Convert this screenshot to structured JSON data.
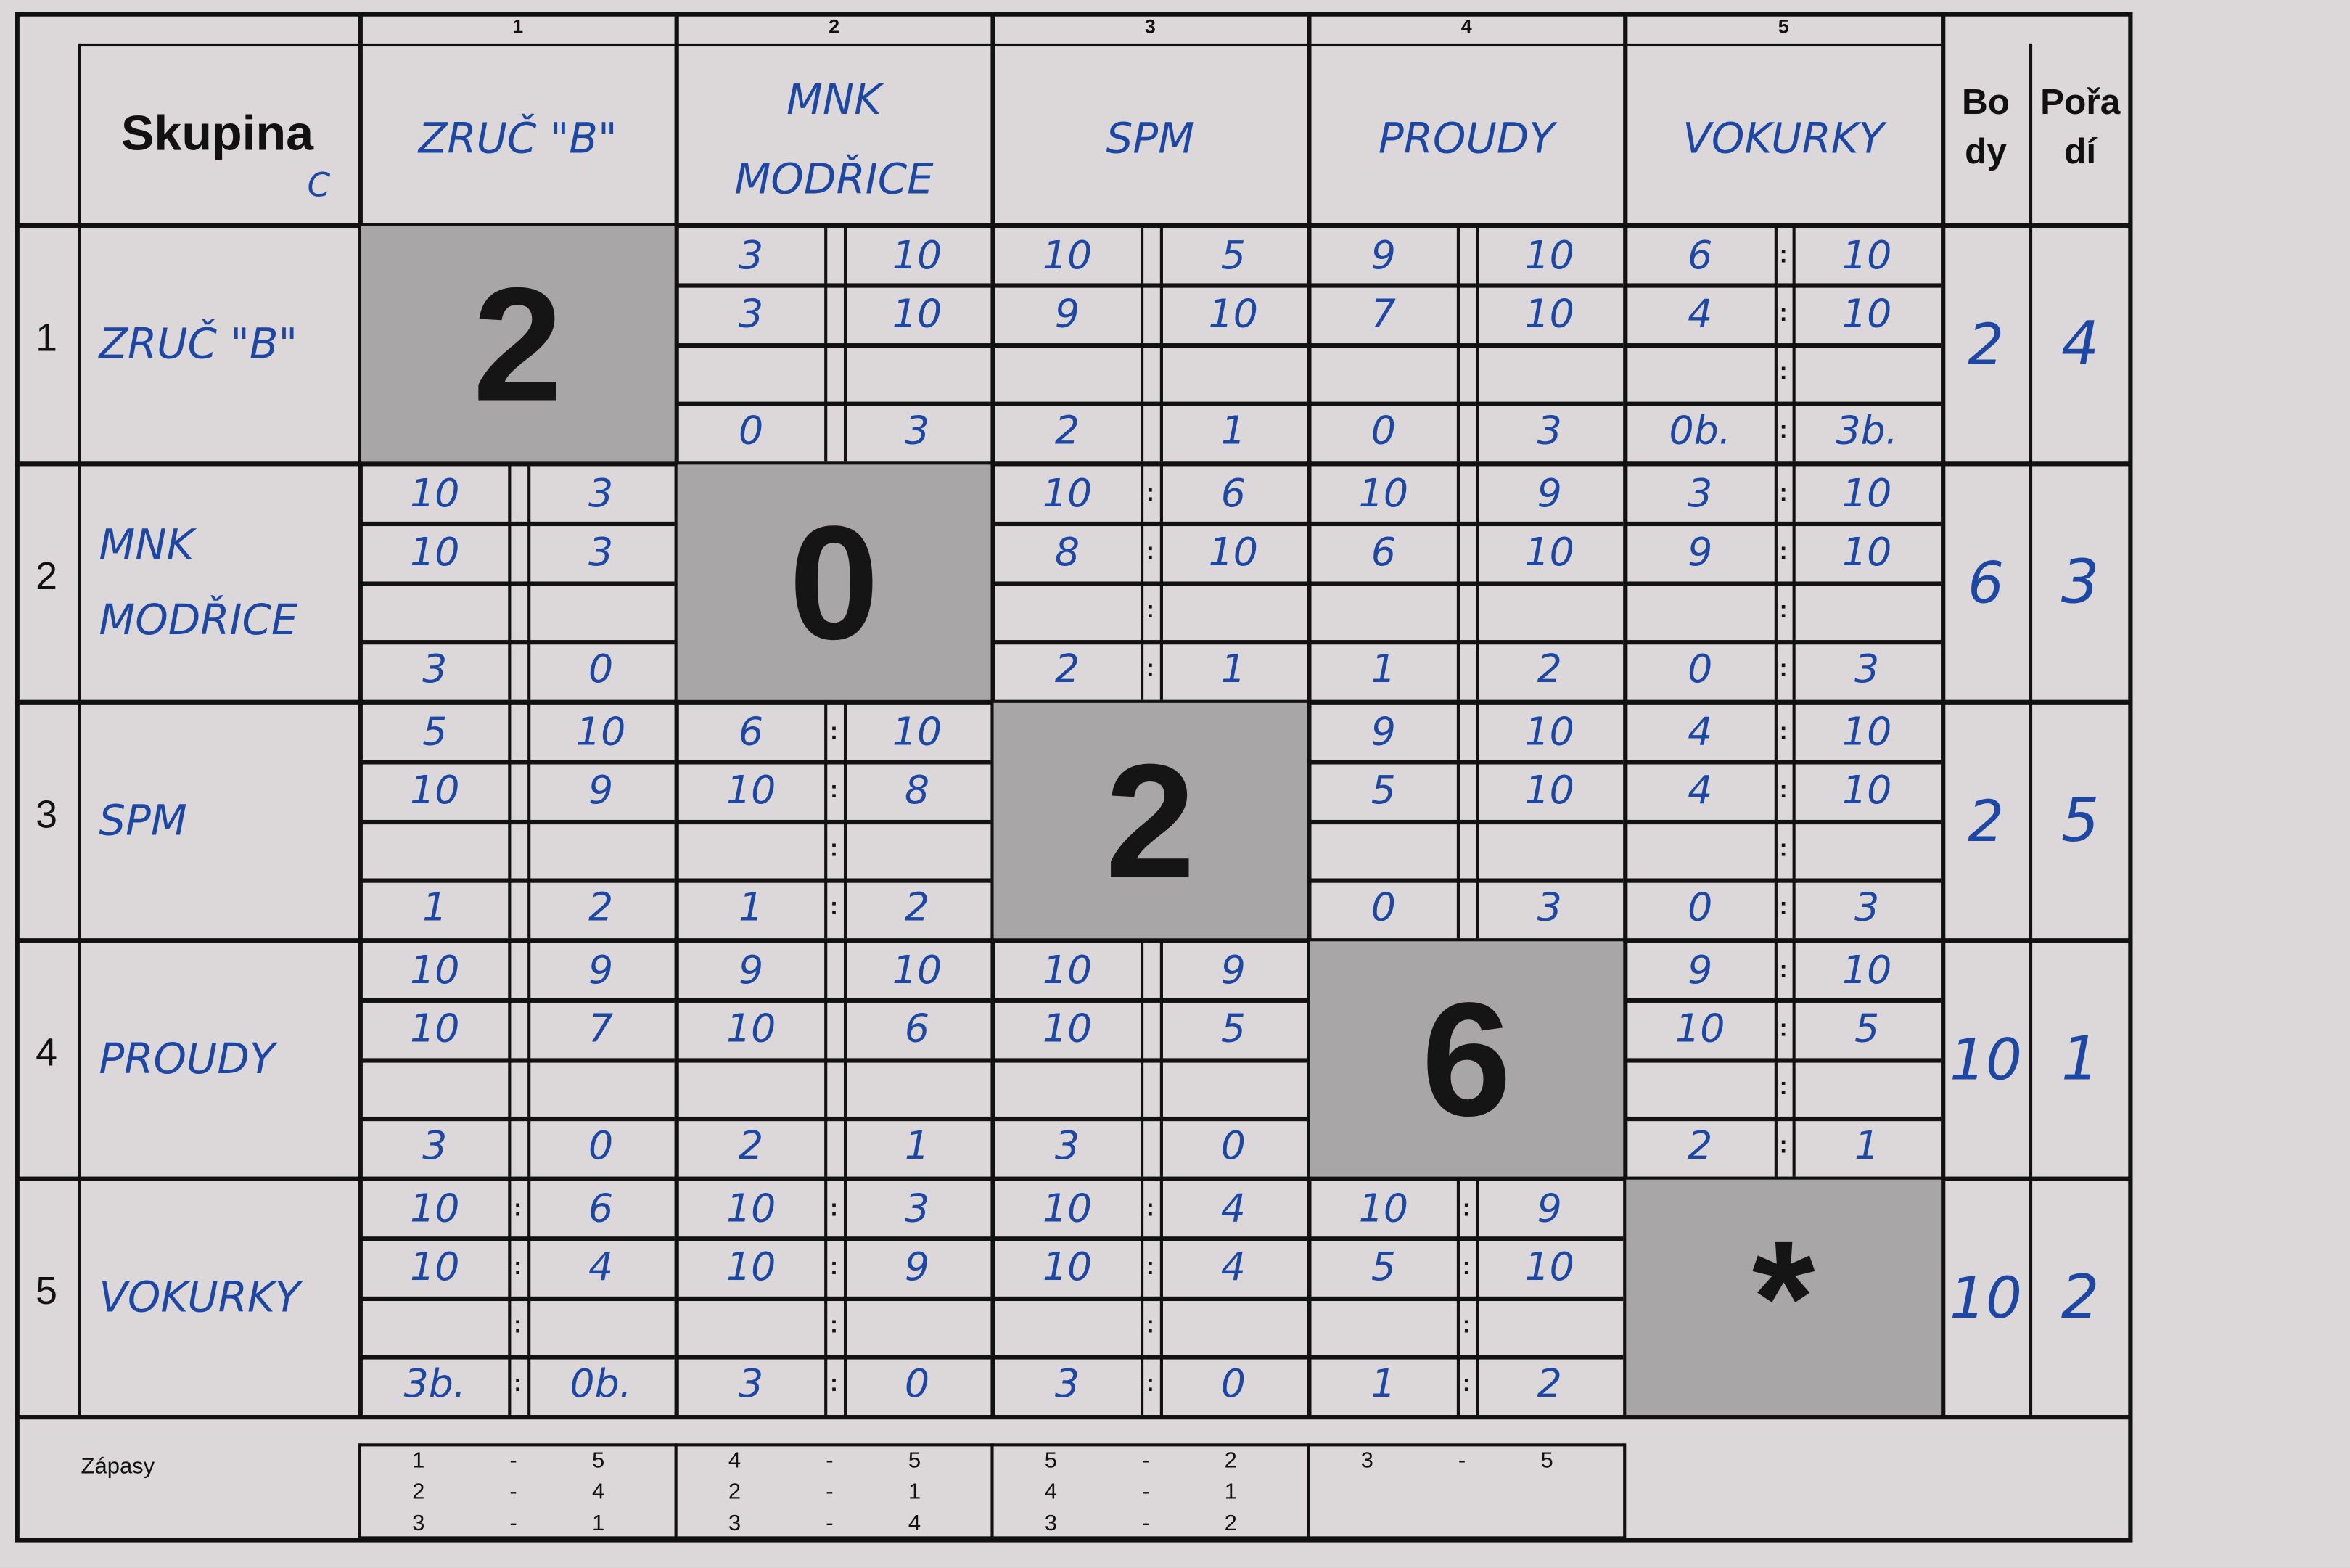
{
  "header": {
    "skupina_label": "Skupina",
    "group_letter": "C",
    "body_label_1": "Bo",
    "body_label_2": "dy",
    "poradi_label_1": "Pořa",
    "poradi_label_2": "dí"
  },
  "column_numbers": [
    "1",
    "2",
    "3",
    "4",
    "5"
  ],
  "teams": [
    {
      "number": "1",
      "name": "ZRUČ \"B\"",
      "header_name": "ZRUČ \"B\""
    },
    {
      "number": "2",
      "name": "MNK MODŘICE",
      "header_name": "MNK MODŘICE"
    },
    {
      "number": "3",
      "name": "SPM",
      "header_name": "SPM"
    },
    {
      "number": "4",
      "name": "PROUDY",
      "header_name": "PROUDY"
    },
    {
      "number": "5",
      "name": "VOKURKY",
      "header_name": "VOKURKY"
    }
  ],
  "diagonal": [
    "2",
    "0",
    "2",
    "6",
    "*"
  ],
  "points": [
    "2",
    "6",
    "2",
    "10",
    "10"
  ],
  "rank": [
    "4",
    "3",
    "5",
    "1",
    "2"
  ],
  "matches": [
    [
      null,
      {
        "colon": false,
        "sets": [
          [
            "3",
            "10"
          ],
          [
            "3",
            "10"
          ],
          [
            "",
            ""
          ],
          [
            "0",
            "3"
          ]
        ]
      },
      {
        "colon": false,
        "sets": [
          [
            "10",
            "5"
          ],
          [
            "9",
            "10"
          ],
          [
            "",
            ""
          ],
          [
            "2",
            "1"
          ]
        ]
      },
      {
        "colon": false,
        "sets": [
          [
            "9",
            "10"
          ],
          [
            "7",
            "10"
          ],
          [
            "",
            ""
          ],
          [
            "0",
            "3"
          ]
        ]
      },
      {
        "colon": true,
        "sets": [
          [
            "6",
            "10"
          ],
          [
            "4",
            "10"
          ],
          [
            "",
            ""
          ],
          [
            "0b.",
            "3b."
          ]
        ]
      }
    ],
    [
      {
        "colon": false,
        "sets": [
          [
            "10",
            "3"
          ],
          [
            "10",
            "3"
          ],
          [
            "",
            ""
          ],
          [
            "3",
            "0"
          ]
        ]
      },
      null,
      {
        "colon": true,
        "sets": [
          [
            "10",
            "6"
          ],
          [
            "8",
            "10"
          ],
          [
            "",
            ""
          ],
          [
            "2",
            "1"
          ]
        ]
      },
      {
        "colon": false,
        "sets": [
          [
            "10",
            "9"
          ],
          [
            "6",
            "10"
          ],
          [
            "",
            ""
          ],
          [
            "1",
            "2"
          ]
        ]
      },
      {
        "colon": true,
        "sets": [
          [
            "3",
            "10"
          ],
          [
            "9",
            "10"
          ],
          [
            "",
            ""
          ],
          [
            "0",
            "3"
          ]
        ]
      }
    ],
    [
      {
        "colon": false,
        "sets": [
          [
            "5",
            "10"
          ],
          [
            "10",
            "9"
          ],
          [
            "",
            ""
          ],
          [
            "1",
            "2"
          ]
        ]
      },
      {
        "colon": true,
        "sets": [
          [
            "6",
            "10"
          ],
          [
            "10",
            "8"
          ],
          [
            "",
            ""
          ],
          [
            "1",
            "2"
          ]
        ]
      },
      null,
      {
        "colon": false,
        "sets": [
          [
            "9",
            "10"
          ],
          [
            "5",
            "10"
          ],
          [
            "",
            ""
          ],
          [
            "0",
            "3"
          ]
        ]
      },
      {
        "colon": true,
        "sets": [
          [
            "4",
            "10"
          ],
          [
            "4",
            "10"
          ],
          [
            "",
            ""
          ],
          [
            "0",
            "3"
          ]
        ]
      }
    ],
    [
      {
        "colon": false,
        "sets": [
          [
            "10",
            "9"
          ],
          [
            "10",
            "7"
          ],
          [
            "",
            ""
          ],
          [
            "3",
            "0"
          ]
        ]
      },
      {
        "colon": false,
        "sets": [
          [
            "9",
            "10"
          ],
          [
            "10",
            "6"
          ],
          [
            "",
            ""
          ],
          [
            "2",
            "1"
          ]
        ]
      },
      {
        "colon": false,
        "sets": [
          [
            "10",
            "9"
          ],
          [
            "10",
            "5"
          ],
          [
            "",
            ""
          ],
          [
            "3",
            "0"
          ]
        ]
      },
      null,
      {
        "colon": true,
        "sets": [
          [
            "9",
            "10"
          ],
          [
            "10",
            "5"
          ],
          [
            "",
            ""
          ],
          [
            "2",
            "1"
          ]
        ]
      }
    ],
    [
      {
        "colon": true,
        "sets": [
          [
            "10",
            "6"
          ],
          [
            "10",
            "4"
          ],
          [
            "",
            ""
          ],
          [
            "3b.",
            "0b."
          ]
        ]
      },
      {
        "colon": true,
        "sets": [
          [
            "10",
            "3"
          ],
          [
            "10",
            "9"
          ],
          [
            "",
            ""
          ],
          [
            "3",
            "0"
          ]
        ]
      },
      {
        "colon": true,
        "sets": [
          [
            "10",
            "4"
          ],
          [
            "10",
            "4"
          ],
          [
            "",
            ""
          ],
          [
            "3",
            "0"
          ]
        ]
      },
      {
        "colon": true,
        "sets": [
          [
            "10",
            "9"
          ],
          [
            "5",
            "10"
          ],
          [
            "",
            ""
          ],
          [
            "1",
            "2"
          ]
        ]
      },
      null
    ]
  ],
  "zapasy": {
    "label": "Zápasy",
    "rounds": [
      [
        [
          "1",
          "5"
        ],
        [
          "2",
          "4"
        ],
        [
          "3",
          "1"
        ]
      ],
      [
        [
          "4",
          "5"
        ],
        [
          "2",
          "1"
        ],
        [
          "3",
          "4"
        ]
      ],
      [
        [
          "5",
          "2"
        ],
        [
          "4",
          "1"
        ],
        [
          "3",
          "2"
        ]
      ],
      [
        [
          "3",
          "5"
        ]
      ]
    ]
  },
  "colors": {
    "ink": "#1d47a3",
    "paper": "#dcd8d9",
    "diagonal_fill": "#a9a6a7"
  }
}
